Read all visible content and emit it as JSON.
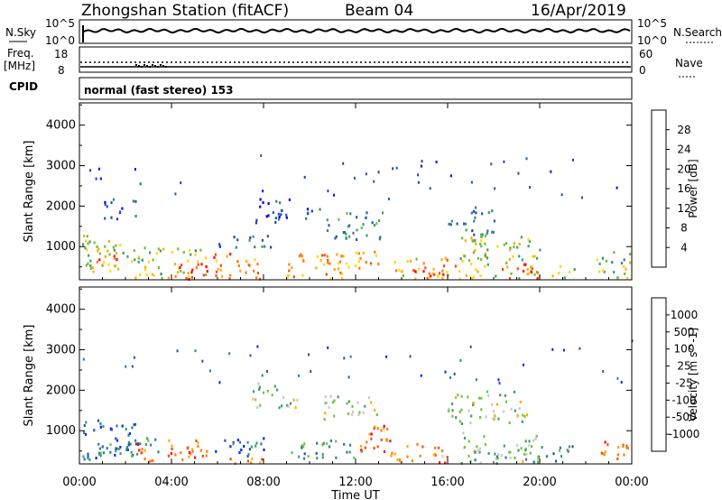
{
  "header": {
    "station": "Zhongshan Station (fitACF)",
    "beam": "Beam 04",
    "date": "16/Apr/2019"
  },
  "top_panels": {
    "nsky_label": "N.Sky",
    "nsky_ticks": [
      "10^5",
      "10^0"
    ],
    "nsearch_label": "N.Search",
    "nsearch_ticks": [
      "10^5",
      "10^0"
    ],
    "freq_label": "Freq.",
    "freq_unit": "[MHz]",
    "freq_ticks": [
      "18",
      "8"
    ],
    "nave_label": "Nave",
    "nave_ticks": [
      "60",
      "0"
    ],
    "cpid_label": "CPID",
    "cpid_text": "normal (fast stereo) 153"
  },
  "chart_data": [
    {
      "type": "heatmap",
      "name": "Power",
      "xlabel": "",
      "ylabel": "Slant Range [km]",
      "x_ticks": [
        "00:00",
        "04:00",
        "08:00",
        "12:00",
        "16:00",
        "20:00",
        "00:00"
      ],
      "x_range_hours": [
        0,
        24
      ],
      "y_ticks": [
        1000,
        2000,
        3000,
        4000
      ],
      "y_range": [
        180,
        4550
      ],
      "colorbar": {
        "label": "Power [dB]",
        "ticks": [
          "4",
          "8",
          "12",
          "16",
          "20",
          "24",
          "28"
        ],
        "colors": [
          "#0000ff",
          "#1f3fbf",
          "#2a5aa8",
          "#3e7f86",
          "#3f9f6a",
          "#6cbf3e",
          "#ffd800",
          "#ffaa00",
          "#ff7a00",
          "#ff4800",
          "#ff0000"
        ]
      },
      "blobs": [
        {
          "t0": 0.1,
          "t1": 2.2,
          "r0": 350,
          "r1": 1300,
          "level": 0.55
        },
        {
          "t0": 0.5,
          "t1": 1.8,
          "r0": 500,
          "r1": 900,
          "level": 0.85
        },
        {
          "t0": 1.0,
          "t1": 2.5,
          "r0": 1700,
          "r1": 2200,
          "level": 0.15
        },
        {
          "t0": 2.2,
          "t1": 5.5,
          "r0": 250,
          "r1": 1000,
          "level": 0.5
        },
        {
          "t0": 3.5,
          "t1": 5.6,
          "r0": 220,
          "r1": 600,
          "level": 0.9
        },
        {
          "t0": 5.5,
          "t1": 7.9,
          "r0": 220,
          "r1": 850,
          "level": 0.75
        },
        {
          "t0": 6.0,
          "t1": 8.5,
          "r0": 1000,
          "r1": 1300,
          "level": 0.3
        },
        {
          "t0": 7.5,
          "t1": 9.5,
          "r0": 1600,
          "r1": 2200,
          "level": 0.15
        },
        {
          "t0": 8.9,
          "t1": 11.5,
          "r0": 220,
          "r1": 900,
          "level": 0.7
        },
        {
          "t0": 9.8,
          "t1": 10.5,
          "r0": 1700,
          "r1": 2200,
          "level": 0.2
        },
        {
          "t0": 10.6,
          "t1": 13.2,
          "r0": 1200,
          "r1": 1900,
          "level": 0.35
        },
        {
          "t0": 11.2,
          "t1": 13.0,
          "r0": 400,
          "r1": 900,
          "level": 0.7
        },
        {
          "t0": 13.5,
          "t1": 16.5,
          "r0": 220,
          "r1": 800,
          "level": 0.7
        },
        {
          "t0": 14.5,
          "t1": 16.2,
          "r0": 220,
          "r1": 450,
          "level": 0.95
        },
        {
          "t0": 16.0,
          "t1": 18.0,
          "r0": 1300,
          "r1": 2000,
          "level": 0.25
        },
        {
          "t0": 16.5,
          "t1": 20.0,
          "r0": 220,
          "r1": 1300,
          "level": 0.55
        },
        {
          "t0": 18.0,
          "t1": 20.0,
          "r0": 220,
          "r1": 600,
          "level": 0.85
        },
        {
          "t0": 20.5,
          "t1": 21.5,
          "r0": 250,
          "r1": 600,
          "level": 0.5
        },
        {
          "t0": 22.3,
          "t1": 24.0,
          "r0": 250,
          "r1": 900,
          "level": 0.5
        }
      ]
    },
    {
      "type": "heatmap",
      "name": "Velocity",
      "xlabel": "Time UT",
      "ylabel": "Slant Range [km]",
      "x_ticks": [
        "00:00",
        "04:00",
        "08:00",
        "12:00",
        "16:00",
        "20:00",
        "00:00"
      ],
      "x_range_hours": [
        0,
        24
      ],
      "y_ticks": [
        1000,
        2000,
        3000,
        4000
      ],
      "y_range": [
        180,
        4550
      ],
      "colorbar": {
        "label": "Velocity [m s^-1]",
        "ticks": [
          "1000",
          "500",
          "100",
          "25",
          "-25",
          "-100",
          "-500",
          "-1000"
        ],
        "colors": [
          "#0022ff",
          "#2a52b0",
          "#2f7ea0",
          "#3f9f6a",
          "#6cc83e",
          "#c8c8c8",
          "#ffaa00",
          "#ff7a00",
          "#ff4a00",
          "#ff0000"
        ]
      },
      "blobs": [
        {
          "t0": 0.1,
          "t1": 2.5,
          "r0": 300,
          "r1": 1300,
          "level": 0.15
        },
        {
          "t0": 0.8,
          "t1": 3.5,
          "r0": 400,
          "r1": 900,
          "level": 0.3
        },
        {
          "t0": 2.5,
          "t1": 5.5,
          "r0": 220,
          "r1": 800,
          "level": 0.8
        },
        {
          "t0": 5.8,
          "t1": 8.0,
          "r0": 400,
          "r1": 900,
          "level": 0.2
        },
        {
          "t0": 6.0,
          "t1": 8.0,
          "r0": 220,
          "r1": 400,
          "level": 0.75
        },
        {
          "t0": 7.5,
          "t1": 9.5,
          "r0": 1600,
          "r1": 2200,
          "level": 0.5
        },
        {
          "t0": 9.0,
          "t1": 12.0,
          "r0": 300,
          "r1": 800,
          "level": 0.35
        },
        {
          "t0": 10.6,
          "t1": 13.0,
          "r0": 1300,
          "r1": 1900,
          "level": 0.5
        },
        {
          "t0": 12.0,
          "t1": 13.5,
          "r0": 400,
          "r1": 1200,
          "level": 0.8
        },
        {
          "t0": 13.5,
          "t1": 16.0,
          "r0": 220,
          "r1": 700,
          "level": 0.75
        },
        {
          "t0": 16.0,
          "t1": 19.5,
          "r0": 1200,
          "r1": 2000,
          "level": 0.5
        },
        {
          "t0": 16.5,
          "t1": 20.0,
          "r0": 220,
          "r1": 1000,
          "level": 0.45
        },
        {
          "t0": 19.5,
          "t1": 21.5,
          "r0": 250,
          "r1": 700,
          "level": 0.3
        },
        {
          "t0": 22.5,
          "t1": 24.0,
          "r0": 250,
          "r1": 800,
          "level": 0.75
        }
      ]
    }
  ]
}
